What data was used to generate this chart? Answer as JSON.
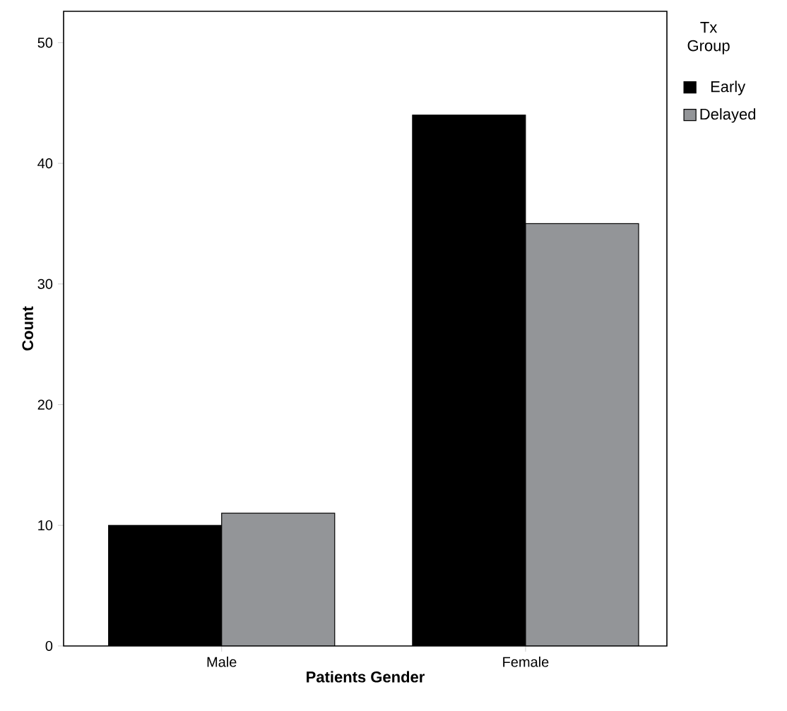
{
  "chart_data": {
    "type": "bar",
    "xlabel": "Patients Gender",
    "ylabel": "Count",
    "legend_title": "Tx Group",
    "categories": [
      "Male",
      "Female"
    ],
    "series": [
      {
        "name": "Early",
        "color": "#000000",
        "values": [
          10,
          44
        ]
      },
      {
        "name": "Delayed",
        "color": "#939598",
        "values": [
          11,
          35
        ]
      }
    ],
    "ylim": [
      0,
      52.6
    ],
    "yticks": [
      0,
      10,
      20,
      30,
      40,
      50
    ],
    "grid": false,
    "legend": "right"
  }
}
